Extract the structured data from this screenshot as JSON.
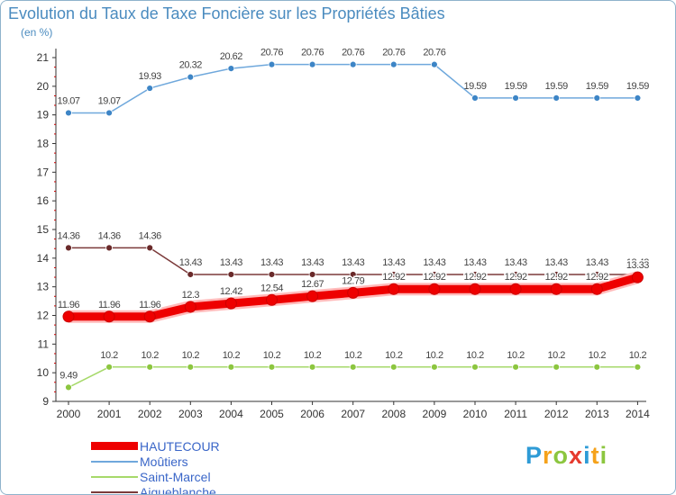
{
  "title": "Evolution du Taux de Taxe Foncière sur les Propriétés Bâties",
  "unit_label": "(en %)",
  "brand": {
    "text": "Proxiti",
    "colors": [
      "#2e9bd6",
      "#f5a21b",
      "#8cc63f",
      "#e63b2e",
      "#2e9bd6",
      "#f5a21b",
      "#8cc63f"
    ]
  },
  "chart_data": {
    "type": "line",
    "title": "Evolution du Taux de Taxe Foncière sur les Propriétés Bâties",
    "xlabel": "",
    "ylabel": "(en %)",
    "x": [
      "2000",
      "2001",
      "2002",
      "2003",
      "2004",
      "2005",
      "2006",
      "2007",
      "2008",
      "2009",
      "2010",
      "2011",
      "2012",
      "2013",
      "2014"
    ],
    "ylim": [
      9,
      21
    ],
    "yticks": [
      "9",
      "10",
      "11",
      "12",
      "13",
      "14",
      "15",
      "16",
      "17",
      "18",
      "19",
      "20",
      "21"
    ],
    "grid": false,
    "legend_position": "bottom-left",
    "series": [
      {
        "name": "HAUTECOUR",
        "color": "#ee0000",
        "marker_color": "#ee0000",
        "label_color": "#ffffff",
        "emphasis": true,
        "values": [
          11.96,
          11.96,
          11.96,
          12.3,
          12.42,
          12.54,
          12.67,
          12.79,
          12.92,
          12.92,
          12.92,
          12.92,
          12.92,
          12.92,
          13.33
        ],
        "labels": [
          "11.96",
          "11.96",
          "11.96",
          "12.3",
          "12.42",
          "12.54",
          "12.67",
          "12.79",
          "12.92",
          "12.92",
          "12.92",
          "12.92",
          "12.92",
          "12.92",
          "13.33"
        ]
      },
      {
        "name": "Moûtiers",
        "color": "#6fa8dc",
        "marker_color": "#3d85c6",
        "label_color": "#444444",
        "values": [
          19.07,
          19.07,
          19.93,
          20.32,
          20.62,
          20.76,
          20.76,
          20.76,
          20.76,
          20.76,
          19.59,
          19.59,
          19.59,
          19.59,
          19.59
        ],
        "labels": [
          "19.07",
          "19.07",
          "19.93",
          "20.32",
          "20.62",
          "20.76",
          "20.76",
          "20.76",
          "20.76",
          "20.76",
          "19.59",
          "19.59",
          "19.59",
          "19.59",
          "19.59"
        ]
      },
      {
        "name": "Saint-Marcel",
        "color": "#a6d96a",
        "marker_color": "#8cc63f",
        "label_color": "#444444",
        "values": [
          9.49,
          10.2,
          10.2,
          10.2,
          10.2,
          10.2,
          10.2,
          10.2,
          10.2,
          10.2,
          10.2,
          10.2,
          10.2,
          10.2,
          10.2
        ],
        "labels": [
          "9.49",
          "10.2",
          "10.2",
          "10.2",
          "10.2",
          "10.2",
          "10.2",
          "10.2",
          "10.2",
          "10.2",
          "10.2",
          "10.2",
          "10.2",
          "10.2",
          "10.2"
        ]
      },
      {
        "name": "Aigueblanche",
        "color": "#7b3a3a",
        "marker_color": "#6a2a2a",
        "label_color": "#444444",
        "values": [
          14.36,
          14.36,
          14.36,
          13.43,
          13.43,
          13.43,
          13.43,
          13.43,
          13.43,
          13.43,
          13.43,
          13.43,
          13.43,
          13.43,
          13.43
        ],
        "labels": [
          "14.36",
          "14.36",
          "14.36",
          "13.43",
          "13.43",
          "13.43",
          "13.43",
          "13.43",
          "13.43",
          "13.43",
          "13.43",
          "13.43",
          "13.43",
          "13.43",
          "13.43"
        ]
      }
    ]
  }
}
